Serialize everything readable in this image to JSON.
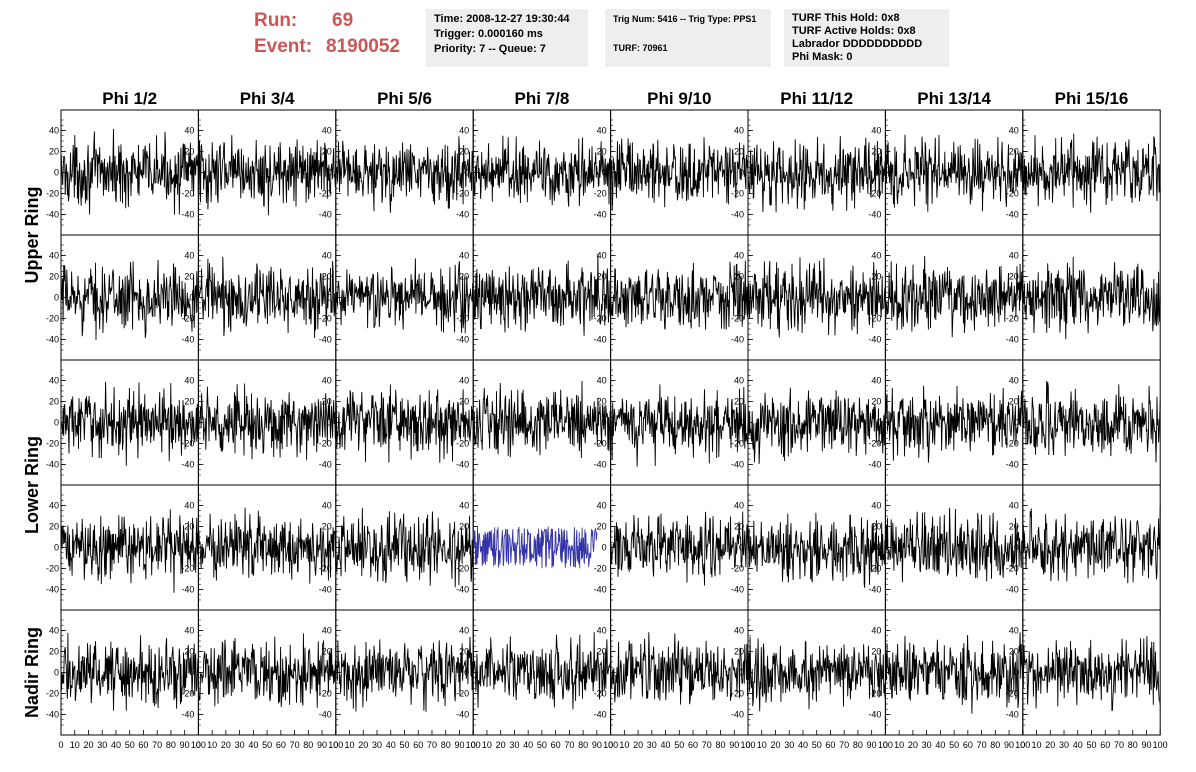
{
  "header": {
    "run_label": "Run:",
    "run_value": "69",
    "event_label": "Event:",
    "event_value": "8190052",
    "box1": [
      "Time: 2008-12-27 19:30:44",
      "Trigger: 0.000160 ms",
      "Priority: 7 -- Queue: 7"
    ],
    "box2": [
      "Trig Num: 5416 -- Trig Type: PPS1",
      "TURF: 70961"
    ],
    "box3": [
      "TURF This Hold: 0x8",
      "TURF Active Holds: 0x8",
      "Labrador DDDDDDDDDD",
      "Phi Mask: 0"
    ]
  },
  "colors": {
    "run_text": "#cc5555",
    "box_bg": "#eeeeee",
    "trace": "#000000",
    "highlight_trace": "#3333aa"
  },
  "chart_data": {
    "type": "line",
    "title": "",
    "columns": [
      "Phi 1/2",
      "Phi 3/4",
      "Phi 5/6",
      "Phi 7/8",
      "Phi 9/10",
      "Phi 11/12",
      "Phi 13/14",
      "Phi 15/16"
    ],
    "rows": [
      "Upper Ring",
      "Upper Ring",
      "Lower Ring",
      "Lower Ring",
      "Nadir Ring"
    ],
    "row_labels": [
      "Upper Ring",
      "Lower Ring",
      "Nadir Ring"
    ],
    "xlim": [
      0,
      100
    ],
    "ylim": [
      -50,
      50
    ],
    "x_ticks": [
      "0",
      "10",
      "20",
      "30",
      "40",
      "50",
      "60",
      "70",
      "80",
      "90",
      "100"
    ],
    "y_ticks": [
      "40",
      "20",
      "0",
      "-20",
      "-40"
    ],
    "samples_per_trace": 260,
    "typical_amplitude": 15,
    "highlighted_trace": {
      "row": 3,
      "column": "Phi 7/8",
      "x_range": [
        0,
        90
      ],
      "ylim": [
        -25,
        25
      ]
    }
  }
}
